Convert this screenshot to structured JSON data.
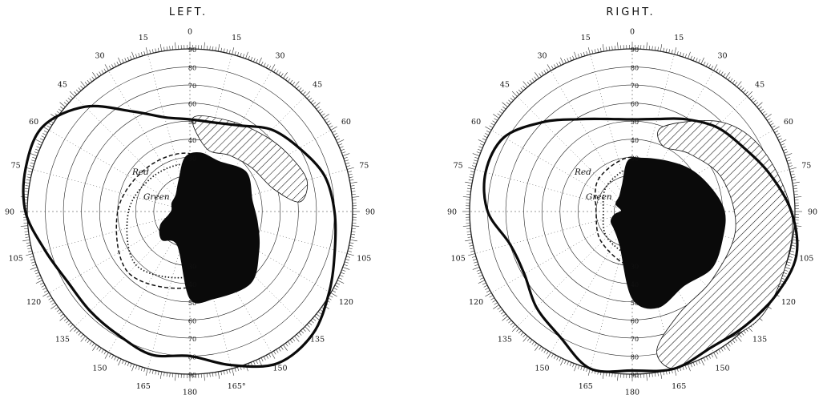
{
  "figure": {
    "panels": [
      {
        "id": "left",
        "title": "LEFT.",
        "degree_labels": [
          "0",
          "15",
          "30",
          "45",
          "60",
          "75",
          "90",
          "105",
          "120",
          "135",
          "150",
          "165°",
          "180",
          "165",
          "150",
          "135",
          "120",
          "105",
          "90",
          "75",
          "60",
          "45",
          "30",
          "15"
        ],
        "ring_labels": [
          "90",
          "80",
          "70",
          "60",
          "50",
          "40",
          "30",
          "30",
          "40",
          "50",
          "60",
          "70",
          "80",
          "90"
        ],
        "annotations": [
          "Red",
          "Green"
        ]
      },
      {
        "id": "right",
        "title": "RIGHT.",
        "degree_labels": [
          "0",
          "15",
          "30",
          "45",
          "60",
          "75",
          "90",
          "105",
          "120",
          "135",
          "150",
          "165",
          "180",
          "165",
          "150",
          "135",
          "120",
          "105",
          "90",
          "75",
          "60",
          "45",
          "30",
          "15"
        ],
        "ring_labels": [
          "90",
          "80",
          "70",
          "60",
          "50",
          "40",
          "30",
          "30",
          "40",
          "50",
          "60",
          "70",
          "80",
          "90"
        ],
        "annotations": [
          "Red",
          "Green"
        ]
      }
    ],
    "legend": {
      "outer_field": "thick solid line",
      "red_field": "dashed line",
      "green_field": "dotted line",
      "absolute_defect": "solid black",
      "relative_defect": "hatched"
    },
    "colors": {
      "ink": "#111111",
      "paper": "#ffffff"
    }
  },
  "chart_data": {
    "type": "perimetry",
    "scale": {
      "radial_max_deg": 90,
      "ring_step_deg": 10,
      "meridian_step_deg": 15
    },
    "fields": {
      "left": {
        "outer_field": [
          [
            0,
            51
          ],
          [
            15,
            51
          ],
          [
            30,
            55
          ],
          [
            45,
            64
          ],
          [
            60,
            70
          ],
          [
            75,
            77
          ],
          [
            90,
            80
          ],
          [
            105,
            83
          ],
          [
            120,
            89
          ],
          [
            135,
            96
          ],
          [
            150,
            97
          ],
          [
            165,
            88
          ],
          [
            180,
            80
          ],
          [
            195,
            82
          ],
          [
            210,
            79
          ],
          [
            225,
            78
          ],
          [
            240,
            78
          ],
          [
            255,
            83
          ],
          [
            270,
            91
          ],
          [
            285,
            94
          ],
          [
            300,
            94
          ],
          [
            315,
            82
          ],
          [
            330,
            64
          ],
          [
            345,
            54
          ]
        ],
        "red_field": [
          [
            0,
            32
          ],
          [
            45,
            22
          ],
          [
            90,
            21
          ],
          [
            135,
            33
          ],
          [
            180,
            42
          ],
          [
            225,
            48
          ],
          [
            270,
            40
          ],
          [
            315,
            34
          ]
        ],
        "green_field": [
          [
            0,
            26
          ],
          [
            45,
            18
          ],
          [
            90,
            16
          ],
          [
            135,
            26
          ],
          [
            180,
            36
          ],
          [
            225,
            42
          ],
          [
            270,
            34
          ],
          [
            315,
            28
          ]
        ],
        "absolute_defect": [
          [
            10,
            33
          ],
          [
            30,
            32
          ],
          [
            55,
            38
          ],
          [
            80,
            35
          ],
          [
            100,
            38
          ],
          [
            120,
            44
          ],
          [
            140,
            52
          ],
          [
            165,
            50
          ],
          [
            180,
            48
          ],
          [
            200,
            20
          ],
          [
            225,
            22
          ],
          [
            245,
            18
          ],
          [
            260,
            12
          ],
          [
            275,
            10
          ],
          [
            295,
            11
          ],
          [
            320,
            12
          ],
          [
            340,
            18
          ],
          [
            355,
            30
          ]
        ],
        "relative_defect": [
          [
            2,
            52
          ],
          [
            25,
            55
          ],
          [
            45,
            59
          ],
          [
            60,
            63
          ],
          [
            75,
            67
          ],
          [
            85,
            61
          ],
          [
            75,
            48
          ],
          [
            55,
            42
          ],
          [
            35,
            38
          ],
          [
            15,
            36
          ]
        ]
      },
      "right": {
        "outer_field": [
          [
            0,
            51
          ],
          [
            15,
            53
          ],
          [
            30,
            59
          ],
          [
            45,
            66
          ],
          [
            60,
            71
          ],
          [
            75,
            79
          ],
          [
            90,
            88
          ],
          [
            105,
            94
          ],
          [
            120,
            92
          ],
          [
            135,
            89
          ],
          [
            150,
            87
          ],
          [
            165,
            90
          ],
          [
            180,
            88
          ],
          [
            195,
            90
          ],
          [
            210,
            80
          ],
          [
            225,
            75
          ],
          [
            240,
            69
          ],
          [
            255,
            70
          ],
          [
            270,
            80
          ],
          [
            285,
            84
          ],
          [
            300,
            82
          ],
          [
            315,
            70
          ],
          [
            330,
            59
          ],
          [
            345,
            53
          ]
        ],
        "red_field": [
          [
            0,
            30
          ],
          [
            45,
            22
          ],
          [
            90,
            22
          ],
          [
            135,
            22
          ],
          [
            180,
            30
          ],
          [
            225,
            24
          ],
          [
            270,
            20
          ],
          [
            315,
            26
          ]
        ],
        "green_field": [
          [
            0,
            24
          ],
          [
            45,
            18
          ],
          [
            90,
            17
          ],
          [
            135,
            18
          ],
          [
            180,
            24
          ],
          [
            225,
            20
          ],
          [
            270,
            16
          ],
          [
            315,
            20
          ]
        ],
        "absolute_defect": [
          [
            10,
            30
          ],
          [
            35,
            34
          ],
          [
            55,
            40
          ],
          [
            75,
            46
          ],
          [
            90,
            51
          ],
          [
            105,
            52
          ],
          [
            125,
            54
          ],
          [
            145,
            50
          ],
          [
            165,
            55
          ],
          [
            180,
            48
          ],
          [
            200,
            20
          ],
          [
            225,
            14
          ],
          [
            245,
            13
          ],
          [
            260,
            10
          ],
          [
            275,
            6
          ],
          [
            295,
            10
          ],
          [
            320,
            11
          ],
          [
            340,
            16
          ],
          [
            355,
            28
          ]
        ],
        "relative_defect": [
          [
            20,
            50
          ],
          [
            45,
            70
          ],
          [
            65,
            80
          ],
          [
            90,
            88
          ],
          [
            110,
            90
          ],
          [
            130,
            92
          ],
          [
            150,
            87
          ],
          [
            165,
            90
          ],
          [
            170,
            78
          ],
          [
            155,
            62
          ],
          [
            130,
            58
          ],
          [
            100,
            58
          ],
          [
            70,
            53
          ],
          [
            45,
            45
          ],
          [
            25,
            40
          ]
        ]
      }
    }
  }
}
